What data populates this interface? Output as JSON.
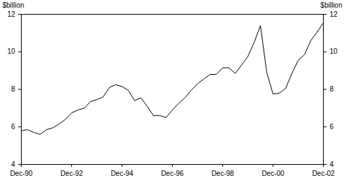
{
  "chart_data": {
    "type": "line",
    "categories": [
      "Dec-90",
      null,
      null,
      null,
      null,
      null,
      null,
      null,
      "Dec-92",
      null,
      null,
      null,
      null,
      null,
      null,
      null,
      "Dec-94",
      null,
      null,
      null,
      null,
      null,
      null,
      null,
      "Dec-96",
      null,
      null,
      null,
      null,
      null,
      null,
      null,
      "Dec-98",
      null,
      null,
      null,
      null,
      null,
      null,
      null,
      "Dec-00",
      null,
      null,
      null,
      null,
      null,
      null,
      null,
      "Dec-02"
    ],
    "values": [
      5.8,
      5.85,
      5.7,
      5.6,
      5.85,
      5.95,
      6.15,
      6.4,
      6.75,
      6.9,
      7.0,
      7.35,
      7.45,
      7.6,
      8.1,
      8.25,
      8.15,
      7.95,
      7.4,
      7.55,
      7.1,
      6.6,
      6.6,
      6.5,
      6.9,
      7.25,
      7.55,
      7.95,
      8.3,
      8.55,
      8.8,
      8.8,
      9.15,
      9.15,
      8.85,
      9.3,
      9.75,
      10.5,
      11.4,
      8.9,
      7.75,
      7.8,
      8.05,
      8.85,
      9.55,
      9.85,
      10.6,
      11.05,
      11.55
    ],
    "color": "#000000",
    "ylabel": "$billion",
    "ylim": [
      4,
      12
    ],
    "yticks": [
      4,
      6,
      8,
      10,
      12
    ]
  }
}
